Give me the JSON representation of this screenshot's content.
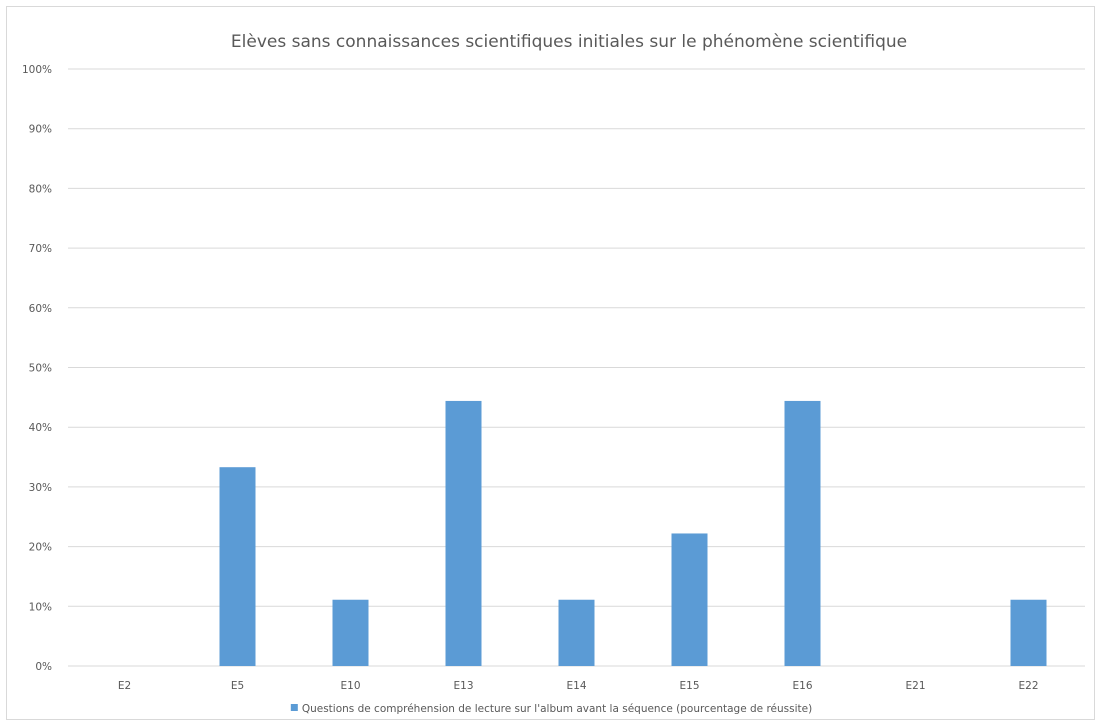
{
  "chart_data": {
    "type": "bar",
    "title": "Elèves sans connaissances scientifiques initiales sur le phénomène scientifique",
    "xlabel": "",
    "ylabel": "",
    "categories": [
      "E2",
      "E5",
      "E10",
      "E13",
      "E14",
      "E15",
      "E16",
      "E21",
      "E22"
    ],
    "series": [
      {
        "name": "Questions de compréhension de lecture sur l'album avant la séquence (pourcentage de réussite)",
        "values": [
          0,
          33.3,
          11.1,
          44.4,
          11.1,
          22.2,
          44.4,
          0,
          11.1
        ],
        "color": "#5b9bd5"
      }
    ],
    "ylim": [
      0,
      100
    ],
    "yticks": [
      "0%",
      "10%",
      "20%",
      "30%",
      "40%",
      "50%",
      "60%",
      "70%",
      "80%",
      "90%",
      "100%"
    ],
    "grid": true,
    "legend_position": "bottom"
  }
}
